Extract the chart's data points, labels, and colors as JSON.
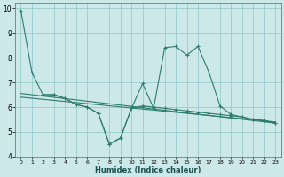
{
  "xlabel": "Humidex (Indice chaleur)",
  "bg_color": "#cce8e8",
  "grid_color": "#99cccc",
  "line_color": "#2d7b6e",
  "xlim": [
    -0.5,
    23.5
  ],
  "ylim": [
    4,
    10.2
  ],
  "yticks": [
    4,
    5,
    6,
    7,
    8,
    9,
    10
  ],
  "xticks": [
    0,
    1,
    2,
    3,
    4,
    5,
    6,
    7,
    8,
    9,
    10,
    11,
    12,
    13,
    14,
    15,
    16,
    17,
    18,
    19,
    20,
    21,
    22,
    23
  ],
  "curve1_x": [
    0,
    1,
    2,
    3,
    4,
    5,
    6,
    7,
    8,
    9,
    10,
    11,
    12,
    13,
    14,
    15,
    16,
    17,
    18,
    19,
    20,
    21,
    22,
    23
  ],
  "curve1_y": [
    9.9,
    7.4,
    6.5,
    6.5,
    6.35,
    6.1,
    6.0,
    5.75,
    4.5,
    4.75,
    5.95,
    6.95,
    5.95,
    8.4,
    8.45,
    8.1,
    8.45,
    7.4,
    6.05,
    5.7,
    5.6,
    5.5,
    5.45,
    5.35
  ],
  "curve2_x": [
    2,
    3,
    4,
    5,
    6,
    7,
    8,
    9,
    10,
    11,
    12,
    13,
    14,
    15,
    16,
    17,
    18,
    19,
    20,
    21,
    22,
    23
  ],
  "curve2_y": [
    6.5,
    6.5,
    6.35,
    6.1,
    6.0,
    5.75,
    4.5,
    4.75,
    5.95,
    6.05,
    6.0,
    5.95,
    5.9,
    5.85,
    5.8,
    5.75,
    5.7,
    5.65,
    5.6,
    5.5,
    5.45,
    5.35
  ],
  "line1_x": [
    0,
    23
  ],
  "line1_y": [
    6.55,
    5.35
  ],
  "line2_x": [
    0,
    23
  ],
  "line2_y": [
    6.4,
    5.4
  ]
}
